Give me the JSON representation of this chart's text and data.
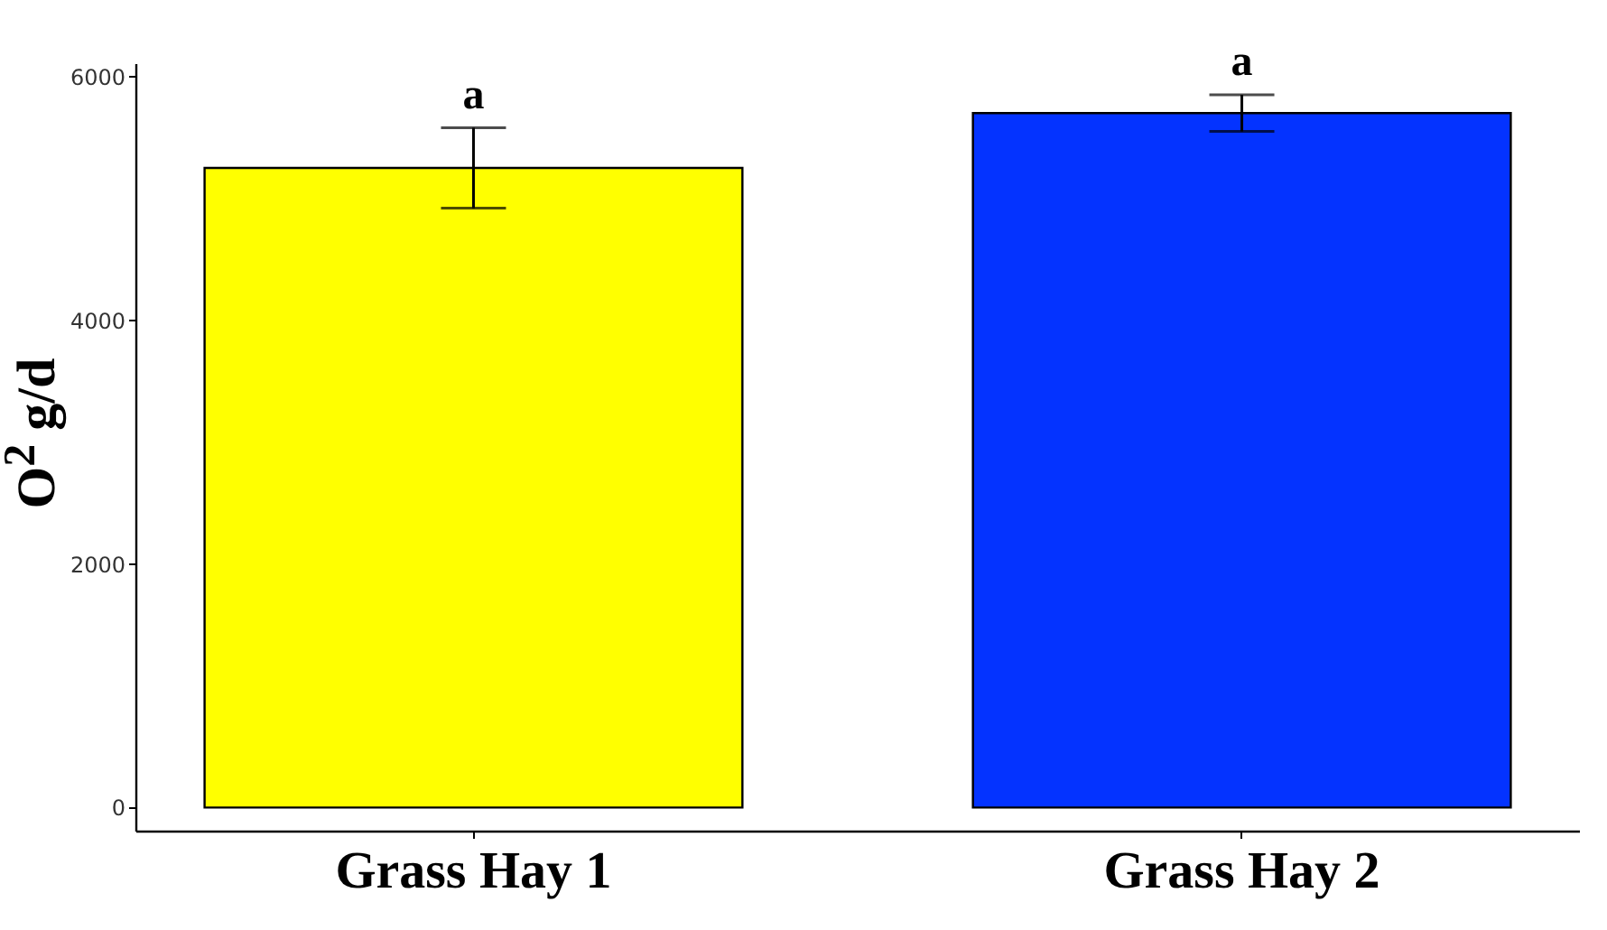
{
  "chart_data": {
    "type": "bar",
    "ylabel": "O$^{2}$ g/d",
    "categories": [
      "Grass Hay 1",
      "Grass Hay 2"
    ],
    "values": [
      5250,
      5700
    ],
    "colors": [
      "#ffff00",
      "#0433ff"
    ],
    "errors": [
      [
        4920,
        5580
      ],
      [
        5550,
        5850
      ]
    ],
    "annotations": [
      {
        "text": "a",
        "x": "Grass Hay 1",
        "y": 5580
      },
      {
        "text": "a",
        "x": "Grass Hay 2",
        "y": 5850
      }
    ],
    "ylim": [
      -190,
      6110
    ],
    "yticks": [
      0,
      2000,
      4000,
      6000
    ],
    "grid": false,
    "legend": false
  }
}
